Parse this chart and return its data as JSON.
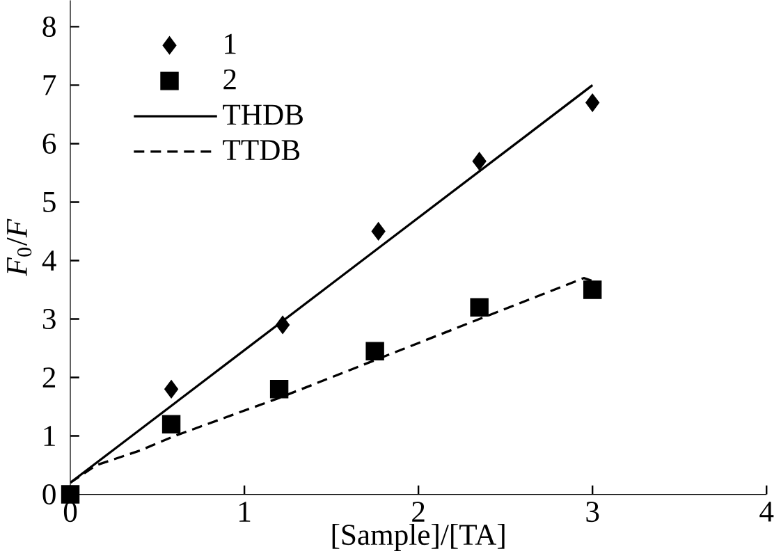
{
  "chart_data": {
    "type": "scatter",
    "xlabel": "[Sample]/[TA]",
    "ylabel": "*F*$_{0}$/*F*",
    "xlim": [
      0,
      4
    ],
    "ylim": [
      0,
      8.45
    ],
    "xticks": [
      0,
      1,
      2,
      3,
      4
    ],
    "yticks": [
      0,
      1,
      2,
      3,
      4,
      5,
      6,
      7,
      8
    ],
    "grid": false,
    "legend": "top left",
    "series": [
      {
        "name": "1",
        "marker": "diamond",
        "color": "#000000",
        "x": [
          0.58,
          1.22,
          1.77,
          2.35,
          3.0
        ],
        "values": [
          1.8,
          2.9,
          4.5,
          5.7,
          6.7
        ]
      },
      {
        "name": "2",
        "marker": "square",
        "color": "#000000",
        "x": [
          0,
          0.58,
          1.2,
          1.75,
          2.35,
          3.0
        ],
        "values": [
          0,
          1.2,
          1.8,
          2.45,
          3.2,
          3.5
        ]
      },
      {
        "name": "THDB",
        "type": "line",
        "line_style": "solid",
        "color": "#000000",
        "x": [
          0,
          3.0
        ],
        "values": [
          0.2,
          7.0
        ]
      },
      {
        "name": "TTDB",
        "type": "line",
        "line_style": "dashed",
        "color": "#000000",
        "x": [
          0,
          0.15,
          0.4,
          0.6,
          1.2,
          2.35,
          2.95,
          3.0
        ],
        "values": [
          0.2,
          0.5,
          0.75,
          1.0,
          1.65,
          3.0,
          3.7,
          3.65
        ]
      }
    ]
  }
}
